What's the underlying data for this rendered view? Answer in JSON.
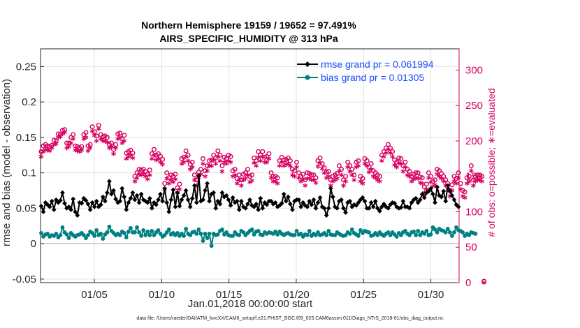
{
  "chart_data": {
    "type": "line",
    "title_line1": "Northern Hemisphere 19159 / 19652 = 97.491%",
    "title_line2": "AIRS_SPECIFIC_HUMIDITY @ 313 hPa",
    "xlabel": "Jan.01,2018 00:00:00 start",
    "ylabel": "rmse and bias (model - observation)",
    "ylabel_right": "# of obs: o=possible; ∗=evaluated",
    "footer": "data file: /Users/raeder/DAI/ATM_forcXX/CAM6_setup/f.e21.FHIST_BGC.f09_025.CAM6assim.011/Diags_NTrS_2018-01/obs_diag_output.nc",
    "x_ticks": [
      "01/05",
      "01/10",
      "01/15",
      "01/20",
      "01/25",
      "01/30"
    ],
    "x_tick_days": [
      5,
      10,
      15,
      20,
      25,
      30
    ],
    "xlim": [
      1.0,
      32.1
    ],
    "ylim": [
      -0.055,
      0.275
    ],
    "y_ticks": [
      "-0.05",
      "0",
      "0.05",
      "0.1",
      "0.15",
      "0.2",
      "0.25"
    ],
    "y2lim": [
      0,
      330
    ],
    "y2_ticks": [
      "0",
      "50",
      "100",
      "150",
      "200",
      "250",
      "300"
    ],
    "series": [
      {
        "name": "rmse grand pr = 0.061994",
        "color": "#000000",
        "marker": "diamond",
        "values": [
          0.053,
          0.045,
          0.058,
          0.055,
          0.052,
          0.06,
          0.048,
          0.062,
          0.058,
          0.061,
          0.072,
          0.057,
          0.05,
          0.052,
          0.048,
          0.063,
          0.045,
          0.04,
          0.058,
          0.057,
          0.064,
          0.061,
          0.056,
          0.048,
          0.058,
          0.052,
          0.06,
          0.052,
          0.055,
          0.066,
          0.06,
          0.072,
          0.088,
          0.07,
          0.075,
          0.063,
          0.058,
          0.06,
          0.078,
          0.066,
          0.048,
          0.058,
          0.064,
          0.072,
          0.062,
          0.068,
          0.058,
          0.07,
          0.062,
          0.06,
          0.058,
          0.064,
          0.05,
          0.058,
          0.055,
          0.062,
          0.07,
          0.06,
          0.078,
          0.058,
          0.045,
          0.062,
          0.076,
          0.052,
          0.072,
          0.053,
          0.062,
          0.068,
          0.075,
          0.062,
          0.052,
          0.064,
          0.082,
          0.058,
          0.096,
          0.06,
          0.062,
          0.075,
          0.085,
          0.06,
          0.07,
          0.072,
          0.05,
          0.06,
          0.056,
          0.072,
          0.066,
          0.068,
          0.062,
          0.054,
          0.065,
          0.058,
          0.06,
          0.048,
          0.06,
          0.052,
          0.05,
          0.056,
          0.062,
          0.054,
          0.052,
          0.056,
          0.048,
          0.064,
          0.05,
          0.058,
          0.055,
          0.06,
          0.06,
          0.056,
          0.058,
          0.052,
          0.054,
          0.057,
          0.07,
          0.06,
          0.066,
          0.056,
          0.048,
          0.06,
          0.062,
          0.062,
          0.052,
          0.058,
          0.054,
          0.052,
          0.06,
          0.055,
          0.062,
          0.05,
          0.058,
          0.065,
          0.052,
          0.05,
          0.04,
          0.05,
          0.078,
          0.066,
          0.052,
          0.05,
          0.06,
          0.062,
          0.05,
          0.044,
          0.058,
          0.06,
          0.052,
          0.055,
          0.054,
          0.058,
          0.062,
          0.065,
          0.06,
          0.05,
          0.05,
          0.058,
          0.052,
          0.06,
          0.05,
          0.046,
          0.052,
          0.056,
          0.052,
          0.05,
          0.055,
          0.058,
          0.057,
          0.052,
          0.05,
          0.051,
          0.06,
          0.052,
          0.052,
          0.05,
          0.058,
          0.062,
          0.064,
          0.058,
          0.062,
          0.07,
          0.065,
          0.072,
          0.074,
          0.078,
          0.07,
          0.058,
          0.08,
          0.068,
          0.066,
          0.074,
          0.06,
          0.082,
          0.074,
          0.068,
          0.062,
          0.055,
          0.052
        ]
      },
      {
        "name": "bias grand pr = 0.01305",
        "color": "#008080",
        "marker": "circle",
        "values": [
          0.015,
          0.01,
          0.013,
          0.014,
          0.01,
          0.012,
          0.011,
          0.014,
          0.009,
          0.012,
          0.023,
          0.016,
          0.013,
          0.008,
          0.015,
          0.012,
          0.01,
          0.012,
          0.013,
          0.015,
          0.012,
          0.008,
          0.012,
          0.017,
          0.015,
          0.011,
          0.019,
          0.012,
          0.014,
          0.007,
          0.013,
          0.016,
          0.024,
          0.018,
          0.015,
          0.012,
          0.014,
          0.012,
          0.017,
          0.015,
          0.009,
          0.017,
          0.022,
          0.016,
          0.016,
          0.023,
          0.016,
          0.011,
          0.019,
          0.012,
          0.017,
          0.012,
          0.018,
          0.012,
          0.016,
          0.019,
          0.014,
          0.01,
          0.012,
          0.016,
          0.02,
          0.013,
          0.015,
          0.012,
          0.015,
          0.011,
          0.014,
          0.011,
          0.021,
          0.014,
          0.012,
          0.016,
          0.017,
          0.014,
          0.02,
          0.014,
          0.004,
          0.014,
          0.008,
          0.014,
          -0.003,
          0.014,
          0.012,
          0.013,
          0.018,
          0.02,
          0.013,
          0.016,
          0.012,
          0.011,
          0.011,
          0.016,
          0.013,
          0.012,
          0.018,
          0.016,
          0.012,
          0.015,
          0.018,
          0.02,
          0.013,
          0.017,
          0.018,
          0.013,
          0.012,
          0.016,
          0.014,
          0.016,
          0.015,
          0.014,
          0.017,
          0.013,
          0.017,
          0.014,
          0.012,
          0.014,
          0.015,
          0.013,
          0.012,
          0.012,
          0.018,
          0.013,
          0.014,
          0.01,
          0.013,
          0.012,
          0.018,
          0.011,
          0.014,
          0.012,
          0.016,
          0.012,
          0.013,
          0.015,
          0.012,
          0.018,
          0.013,
          0.012,
          0.012,
          0.016,
          0.014,
          0.012,
          0.011,
          0.012,
          0.016,
          0.014,
          0.02,
          0.015,
          0.013,
          0.011,
          0.019,
          0.015,
          0.018,
          0.017,
          0.016,
          0.011,
          0.012,
          0.015,
          0.012,
          0.016,
          0.013,
          0.011,
          0.014,
          0.016,
          0.012,
          0.016,
          0.013,
          0.01,
          0.015,
          0.012,
          0.016,
          0.018,
          0.014,
          0.012,
          0.016,
          0.017,
          0.012,
          0.018,
          0.012,
          0.016,
          0.014,
          0.018,
          0.012,
          0.013,
          0.023,
          0.02,
          0.016,
          0.021,
          0.019,
          0.018,
          0.016,
          0.021,
          0.016,
          0.011,
          0.016,
          0.023,
          0.019,
          0.018,
          0.016,
          0.011,
          0.014,
          0.012,
          0.016,
          0.015,
          0.014
        ]
      }
    ],
    "obs_possible": [
      185,
      193,
      195,
      193,
      192,
      194,
      201,
      200,
      210,
      209,
      215,
      216,
      197,
      197,
      205,
      209,
      193,
      192,
      190,
      192,
      209,
      212,
      193,
      195,
      220,
      213,
      207,
      222,
      209,
      206,
      207,
      205,
      195,
      197,
      188,
      195,
      210,
      211,
      203,
      208,
      183,
      185,
      187,
      183,
      150,
      155,
      160,
      159,
      160,
      157,
      153,
      159,
      182,
      188,
      180,
      182,
      178,
      174,
      140,
      155,
      148,
      152,
      150,
      153,
      134,
      139,
      175,
      177,
      186,
      180,
      167,
      170,
      152,
      145,
      156,
      160,
      175,
      158,
      165,
      172,
      173,
      180,
      176,
      186,
      180,
      165,
      177,
      175,
      180,
      178,
      158,
      160,
      147,
      152,
      145,
      153,
      155,
      160,
      150,
      152,
      176,
      172,
      185,
      180,
      185,
      177,
      178,
      182,
      155,
      150,
      150,
      148,
      172,
      177,
      173,
      174,
      176,
      172,
      160,
      158,
      170,
      155,
      150,
      153,
      145,
      155,
      154,
      152,
      152,
      148,
      172,
      176,
      168,
      162,
      156,
      157,
      145,
      150,
      152,
      154,
      165,
      160,
      145,
      150,
      170,
      165,
      160,
      152,
      170,
      172,
      150,
      147,
      175,
      172,
      163,
      168,
      158,
      155,
      152,
      150,
      180,
      185,
      190,
      195,
      190,
      185,
      173,
      170,
      176,
      175,
      165,
      170,
      160,
      157,
      150,
      153,
      155,
      155,
      149,
      148,
      135,
      139,
      155,
      150,
      143,
      145,
      160,
      158,
      154,
      150,
      145,
      140,
      130,
      138,
      150,
      147,
      155,
      140,
      130,
      128,
      148,
      150,
      165,
      145,
      150,
      152,
      152,
      150,
      2
    ],
    "obs_evaluated": [
      178,
      185,
      188,
      187,
      186,
      190,
      195,
      196,
      205,
      206,
      210,
      212,
      190,
      192,
      197,
      203,
      187,
      186,
      185,
      187,
      203,
      205,
      186,
      190,
      214,
      208,
      200,
      217,
      203,
      200,
      200,
      198,
      190,
      192,
      182,
      190,
      203,
      205,
      197,
      200,
      175,
      178,
      180,
      176,
      143,
      148,
      153,
      152,
      154,
      150,
      146,
      152,
      175,
      180,
      173,
      175,
      170,
      167,
      132,
      147,
      140,
      145,
      142,
      146,
      127,
      132,
      168,
      170,
      178,
      172,
      160,
      163,
      145,
      137,
      148,
      153,
      168,
      150,
      158,
      165,
      165,
      173,
      168,
      178,
      172,
      157,
      170,
      168,
      172,
      170,
      150,
      152,
      140,
      145,
      137,
      145,
      147,
      152,
      142,
      144,
      169,
      165,
      177,
      172,
      178,
      170,
      170,
      175,
      148,
      143,
      143,
      140,
      165,
      170,
      165,
      167,
      168,
      165,
      152,
      150,
      163,
      148,
      143,
      146,
      137,
      147,
      147,
      145,
      145,
      141,
      164,
      169,
      161,
      155,
      148,
      150,
      137,
      143,
      145,
      147,
      158,
      152,
      137,
      143,
      163,
      157,
      152,
      145,
      163,
      165,
      143,
      140,
      168,
      165,
      156,
      160,
      150,
      148,
      145,
      143,
      172,
      178,
      183,
      188,
      183,
      178,
      166,
      163,
      169,
      168,
      157,
      163,
      152,
      150,
      143,
      146,
      148,
      147,
      141,
      140,
      127,
      132,
      148,
      142,
      136,
      138,
      153,
      150,
      147,
      143,
      137,
      132,
      122,
      130,
      143,
      140,
      148,
      132,
      122,
      120,
      140,
      143,
      158,
      137,
      143,
      145,
      145,
      143,
      0
    ]
  }
}
